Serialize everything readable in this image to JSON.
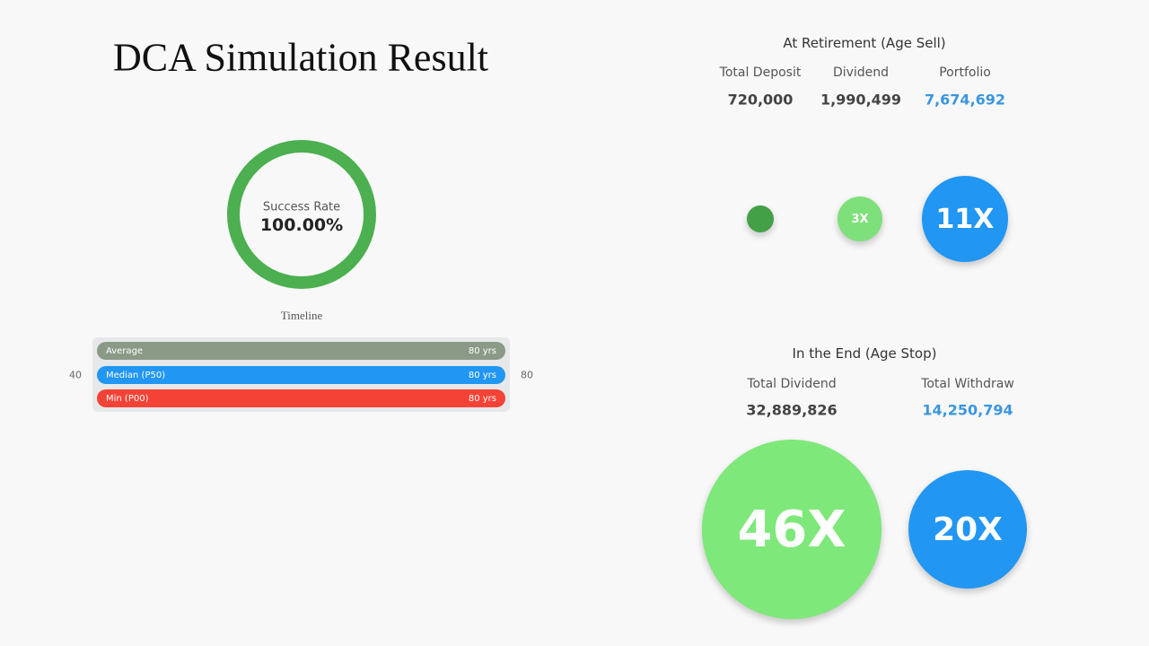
{
  "title": "DCA Simulation Result",
  "success": {
    "label": "Success Rate",
    "value": "100.00%"
  },
  "timeline": {
    "label": "Timeline",
    "axis_min": "40",
    "axis_max": "80",
    "bars": [
      {
        "name": "Average",
        "value": "80 yrs"
      },
      {
        "name": "Median (P50)",
        "value": "80 yrs"
      },
      {
        "name": "Min (P00)",
        "value": "80 yrs"
      }
    ]
  },
  "retirement": {
    "title": "At Retirement (Age Sell)",
    "stats": [
      {
        "label": "Total Deposit",
        "value": "720,000"
      },
      {
        "label": "Dividend",
        "value": "1,990,499"
      },
      {
        "label": "Portfolio",
        "value": "7,674,692"
      }
    ],
    "bubbles": [
      "3X",
      "11X"
    ]
  },
  "end": {
    "title": "In the End (Age Stop)",
    "stats": [
      {
        "label": "Total Dividend",
        "value": "32,889,826"
      },
      {
        "label": "Total Withdraw",
        "value": "14,250,794"
      }
    ],
    "bubbles": [
      "46X",
      "20X"
    ]
  }
}
